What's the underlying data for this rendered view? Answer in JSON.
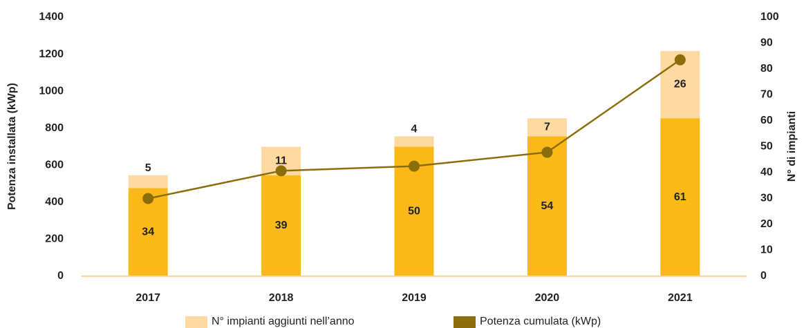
{
  "chart_data": {
    "type": "bar-line",
    "y_label": "Potenza installata (kWp)",
    "y2_label": "N° di impianti",
    "categories": [
      "2017",
      "2018",
      "2019",
      "2020",
      "2021"
    ],
    "series": [
      {
        "color": "#fbb917",
        "axis": "y2",
        "values": [
          34,
          39,
          50,
          54,
          61
        ]
      },
      {
        "name": "N° impianti aggiunti nell’anno",
        "color": "#fed9a2",
        "axis": "y2",
        "values": [
          5,
          11,
          4,
          7,
          26
        ]
      },
      {
        "name": "Potenza cumulata (kWp)",
        "color": "#8c6d0c",
        "type": "line",
        "values": [
          420,
          570,
          595,
          670,
          1170
        ]
      }
    ],
    "ylim": [
      0,
      1400
    ],
    "yticks": [
      0,
      200,
      400,
      600,
      800,
      1000,
      1200,
      1400
    ],
    "y2lim": [
      0,
      100
    ],
    "y2ticks": [
      0,
      10,
      20,
      30,
      40,
      50,
      60,
      70,
      80,
      90,
      100
    ]
  }
}
